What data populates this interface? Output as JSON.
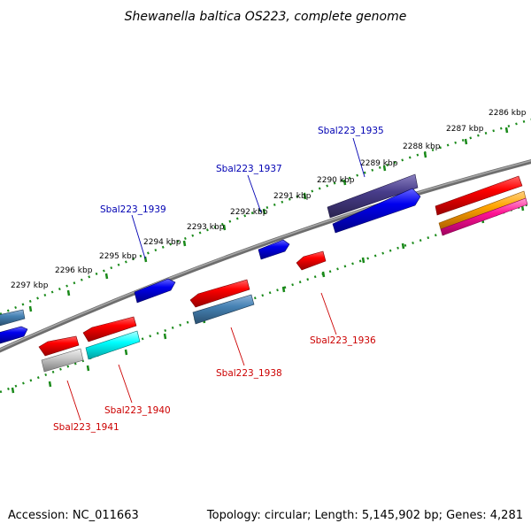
{
  "title": "Shewanella baltica OS223, complete genome",
  "footer": {
    "accession": "Accession: NC_011663",
    "topology": "Topology: circular; Length: 5,145,902 bp; Genes: 4,281"
  },
  "colors": {
    "backbone": "#808080",
    "ticks": "#1a8a1a",
    "forward_label": "#0000b3",
    "reverse_label": "#cc0000"
  },
  "kbp_labels": [
    "2286 kbp",
    "2287 kbp",
    "2288 kbp",
    "2289 kbp",
    "2290 kbp",
    "2291 kbp",
    "2292 kbp",
    "2293 kbp",
    "2294 kbp",
    "2295 kbp",
    "2296 kbp",
    "2297 kbp"
  ],
  "gene_labels": [
    {
      "text": "Sbal223_1935",
      "strand": "forward"
    },
    {
      "text": "Sbal223_1937",
      "strand": "forward"
    },
    {
      "text": "Sbal223_1939",
      "strand": "forward"
    },
    {
      "text": "Sbal223_1936",
      "strand": "reverse"
    },
    {
      "text": "Sbal223_1938",
      "strand": "reverse"
    },
    {
      "text": "Sbal223_1940",
      "strand": "reverse"
    },
    {
      "text": "Sbal223_1941",
      "strand": "reverse"
    }
  ]
}
